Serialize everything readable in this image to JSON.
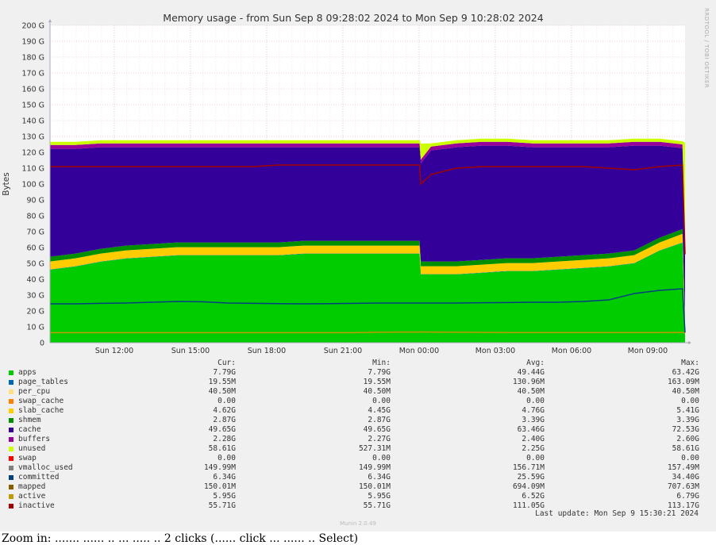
{
  "side_label": "RRDTOOL / TOBI OETIKER",
  "footer": {
    "last_update": "Last update: Mon Sep  9 15:30:21 2024",
    "munin": "Munin 2.0.49"
  },
  "caption": "Zoom in: ....... ...... .. ... ..... .. 2 clicks (...... click ... ...... .. Select)",
  "legend": {
    "headers": [
      "Cur:",
      "Min:",
      "Avg:",
      "Max:"
    ],
    "rows": [
      {
        "name": "apps",
        "color": "#00cc00",
        "cur": "7.79G",
        "min": "7.79G",
        "avg": "49.44G",
        "max": "63.42G"
      },
      {
        "name": "page_tables",
        "color": "#0066b3",
        "cur": "19.55M",
        "min": "19.55M",
        "avg": "130.96M",
        "max": "163.09M"
      },
      {
        "name": "per_cpu",
        "color": "#ffe080",
        "cur": "40.50M",
        "min": "40.50M",
        "avg": "40.50M",
        "max": "40.50M"
      },
      {
        "name": "swap_cache",
        "color": "#ff8000",
        "cur": "0.00",
        "min": "0.00",
        "avg": "0.00",
        "max": "0.00"
      },
      {
        "name": "slab_cache",
        "color": "#ffcc00",
        "cur": "4.62G",
        "min": "4.45G",
        "avg": "4.76G",
        "max": "5.41G"
      },
      {
        "name": "shmem",
        "color": "#008f00",
        "cur": "2.87G",
        "min": "2.87G",
        "avg": "3.39G",
        "max": "3.39G"
      },
      {
        "name": "cache",
        "color": "#330099",
        "cur": "49.65G",
        "min": "49.65G",
        "avg": "63.46G",
        "max": "72.53G"
      },
      {
        "name": "buffers",
        "color": "#990099",
        "cur": "2.28G",
        "min": "2.27G",
        "avg": "2.40G",
        "max": "2.60G"
      },
      {
        "name": "unused",
        "color": "#ccff00",
        "cur": "58.61G",
        "min": "527.31M",
        "avg": "2.25G",
        "max": "58.61G"
      },
      {
        "name": "swap",
        "color": "#ff0000",
        "cur": "0.00",
        "min": "0.00",
        "avg": "0.00",
        "max": "0.00"
      },
      {
        "name": "vmalloc_used",
        "color": "#808080",
        "cur": "149.99M",
        "min": "149.99M",
        "avg": "156.71M",
        "max": "157.49M"
      },
      {
        "name": "committed",
        "color": "#004080",
        "cur": "6.34G",
        "min": "6.34G",
        "avg": "25.59G",
        "max": "34.40G"
      },
      {
        "name": "mapped",
        "color": "#8a5c00",
        "cur": "150.01M",
        "min": "150.01M",
        "avg": "694.09M",
        "max": "707.63M"
      },
      {
        "name": "active",
        "color": "#bf9b00",
        "cur": "5.95G",
        "min": "5.95G",
        "avg": "6.52G",
        "max": "6.79G"
      },
      {
        "name": "inactive",
        "color": "#a30000",
        "cur": "55.71G",
        "min": "55.71G",
        "avg": "111.05G",
        "max": "113.17G"
      }
    ]
  },
  "chart_data": {
    "type": "area",
    "title": "Memory usage - from Sun Sep  8 09:28:02 2024 to Mon Sep  9 10:28:02 2024",
    "ylabel": "Bytes",
    "ylim": [
      0,
      200
    ],
    "yticks": [
      0,
      10,
      20,
      30,
      40,
      50,
      60,
      70,
      80,
      90,
      100,
      110,
      120,
      130,
      140,
      150,
      160,
      170,
      180,
      190,
      200
    ],
    "ytick_labels": [
      "0",
      "10 G",
      "20 G",
      "30 G",
      "40 G",
      "50 G",
      "60 G",
      "70 G",
      "80 G",
      "90 G",
      "100 G",
      "110 G",
      "120 G",
      "130 G",
      "140 G",
      "150 G",
      "160 G",
      "170 G",
      "180 G",
      "190 G",
      "200 G"
    ],
    "xlim": [
      0,
      25
    ],
    "xticks": [
      2.53,
      5.53,
      8.53,
      11.53,
      14.53,
      17.53,
      20.53,
      23.53
    ],
    "xtick_labels": [
      "Sun 12:00",
      "Sun 15:00",
      "Sun 18:00",
      "Sun 21:00",
      "Mon 00:00",
      "Mon 03:00",
      "Mon 06:00",
      "Mon 09:00"
    ],
    "grid": true,
    "x": [
      0,
      1,
      2,
      3,
      4,
      5,
      6,
      7,
      8,
      9,
      10,
      11,
      12,
      13,
      14,
      14.55,
      14.6,
      15,
      16,
      17,
      18,
      19,
      20,
      21,
      22,
      23,
      24,
      24.9,
      25
    ],
    "stacked_series": [
      {
        "name": "apps",
        "color": "#00cc00",
        "values": [
          46,
          48,
          51,
          53,
          54,
          55,
          55,
          55,
          55,
          55,
          56,
          56,
          56,
          56,
          56,
          56,
          43,
          43,
          43,
          44,
          45,
          45,
          46,
          47,
          48,
          50,
          58,
          63,
          8
        ]
      },
      {
        "name": "page_tables",
        "color": "#0066b3",
        "values": [
          0.2,
          0.2,
          0.2,
          0.2,
          0.2,
          0.2,
          0.2,
          0.2,
          0.2,
          0.2,
          0.2,
          0.2,
          0.2,
          0.2,
          0.2,
          0.2,
          0.2,
          0.2,
          0.2,
          0.2,
          0.2,
          0.2,
          0.2,
          0.2,
          0.2,
          0.2,
          0.2,
          0.2,
          0.02
        ]
      },
      {
        "name": "slab_cache",
        "color": "#ffcc00",
        "values": [
          5,
          5,
          5,
          5,
          5,
          5,
          5,
          5,
          5,
          5,
          5,
          5,
          5,
          5,
          5,
          5,
          5,
          5,
          5,
          5,
          5,
          5,
          5,
          5,
          5,
          5,
          5,
          5.4,
          4.6
        ]
      },
      {
        "name": "shmem",
        "color": "#008f00",
        "values": [
          3,
          3,
          3,
          3,
          3,
          3,
          3,
          3,
          3,
          3,
          3,
          3,
          3,
          3,
          3,
          3,
          3,
          3,
          3,
          3,
          3,
          3,
          3,
          3,
          3,
          3,
          3,
          3,
          2.9
        ]
      },
      {
        "name": "cache",
        "color": "#330099",
        "values": [
          68,
          66,
          64,
          62,
          61,
          60,
          60,
          60,
          60,
          60,
          59,
          59,
          59,
          59,
          59,
          59,
          62,
          70,
          72,
          72,
          71,
          70,
          69,
          68,
          67,
          66,
          58,
          51,
          49.7
        ]
      },
      {
        "name": "buffers",
        "color": "#990099",
        "values": [
          2.4,
          2.4,
          2.4,
          2.4,
          2.4,
          2.4,
          2.4,
          2.4,
          2.4,
          2.4,
          2.4,
          2.4,
          2.4,
          2.4,
          2.4,
          2.4,
          2.3,
          2.4,
          2.4,
          2.4,
          2.4,
          2.4,
          2.4,
          2.4,
          2.4,
          2.4,
          2.4,
          2.4,
          2.3
        ]
      },
      {
        "name": "unused",
        "color": "#ccff00",
        "values": [
          2,
          2,
          2,
          2,
          2,
          2,
          2,
          2,
          2,
          2,
          2,
          2,
          2,
          2,
          2,
          2,
          10,
          2,
          2,
          2,
          2,
          2,
          2,
          2,
          2,
          2,
          2,
          2,
          58.6
        ]
      }
    ],
    "line_series": [
      {
        "name": "committed",
        "color": "#004080",
        "values": [
          24.5,
          24.5,
          24.8,
          25,
          25.5,
          26,
          25.8,
          25,
          24.8,
          24.6,
          24.5,
          24.6,
          24.8,
          25,
          25,
          25,
          25,
          25,
          25,
          25.2,
          25.3,
          25.5,
          25.5,
          26,
          27,
          31,
          33,
          34,
          6.3
        ]
      },
      {
        "name": "active",
        "color": "#bf9b00",
        "values": [
          6.3,
          6.3,
          6.3,
          6.3,
          6.3,
          6.3,
          6.3,
          6.3,
          6.3,
          6.3,
          6.3,
          6.3,
          6.3,
          6.6,
          6.7,
          6.7,
          6.8,
          6.7,
          6.6,
          6.5,
          6.4,
          6.4,
          6.4,
          6.4,
          6.4,
          6.4,
          6.4,
          6.5,
          5.95
        ]
      },
      {
        "name": "inactive",
        "color": "#a30000",
        "values": [
          111,
          111,
          111,
          111,
          111,
          111,
          111,
          111,
          111,
          112,
          112,
          112,
          112,
          112,
          112,
          112,
          100,
          106,
          110,
          111,
          111,
          111,
          111,
          111,
          110,
          109,
          111,
          112,
          55.7
        ]
      }
    ]
  }
}
